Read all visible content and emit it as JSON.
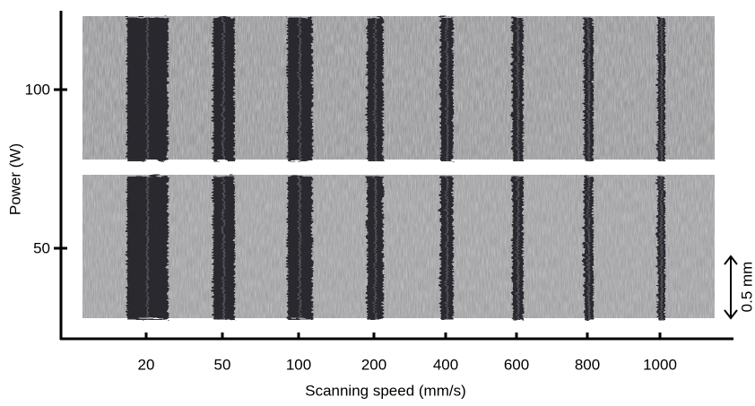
{
  "x_axis": {
    "label": "Scanning speed (mm/s)",
    "ticks": [
      "20",
      "50",
      "100",
      "200",
      "400",
      "600",
      "800",
      "1000"
    ]
  },
  "y_axis": {
    "label": "Power (W)",
    "ticks": [
      "100",
      "50"
    ]
  },
  "scale_bar": {
    "label": "0.5 mm"
  }
}
